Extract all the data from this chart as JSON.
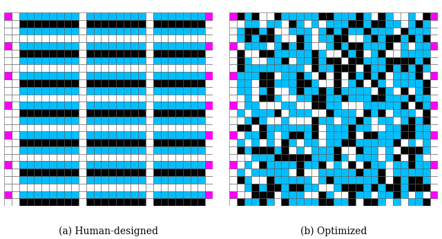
{
  "title_a": "(a) Human-designed",
  "title_b": "(b) Optimized",
  "grid_rows": 26,
  "grid_cols": 26,
  "colors": {
    "cyan": "#00BFFF",
    "black": "#000000",
    "white": "#FFFFFF",
    "magenta": "#FF00FF",
    "grid_line": "#555555",
    "background": "#FFFFFF"
  },
  "subtitle_fontsize": 10,
  "magenta_rows": [
    0,
    4,
    8,
    12,
    16,
    20,
    24
  ],
  "human_aisle_cols": [
    0,
    9,
    18
  ],
  "human_row_pattern": [
    1,
    2,
    1,
    0,
    1,
    2,
    1,
    0,
    1,
    2,
    1,
    0,
    1,
    2,
    1,
    0,
    1,
    2,
    1,
    0,
    1,
    2,
    1,
    0,
    1,
    2
  ],
  "opt_seed": 77
}
